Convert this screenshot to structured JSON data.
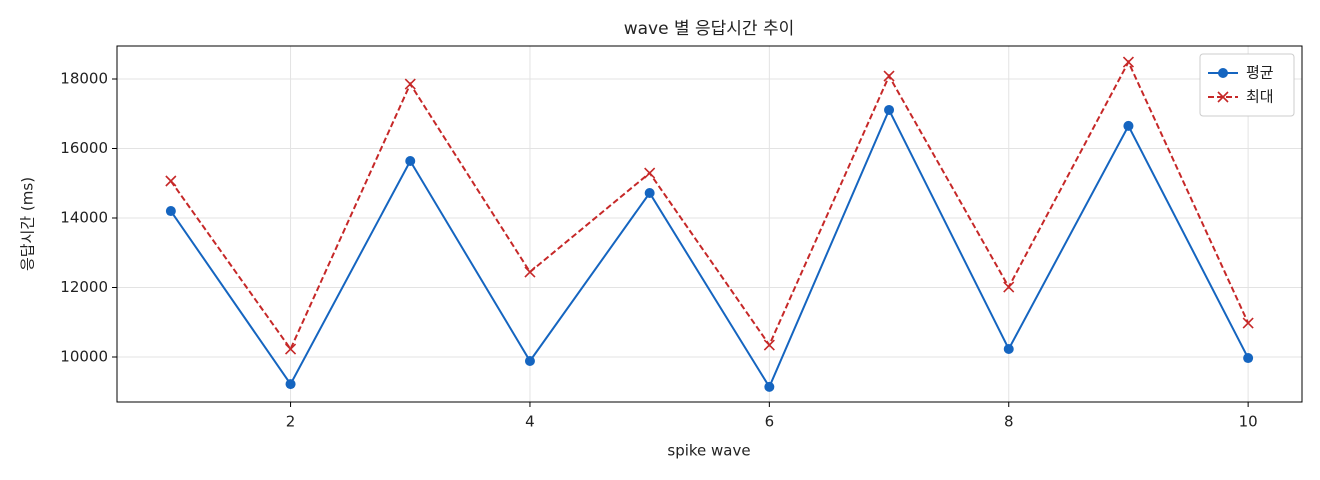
{
  "chart_data": {
    "type": "line",
    "title": "wave 별 응답시간 추이",
    "xlabel": "spike wave",
    "ylabel": "응답시간 (ms)",
    "x": [
      1,
      2,
      3,
      4,
      5,
      6,
      7,
      8,
      9,
      10
    ],
    "series": [
      {
        "name": "평균",
        "color": "#1565c0",
        "marker": "o",
        "linestyle": "solid",
        "values": [
          14200,
          9220,
          15640,
          9885,
          14720,
          9140,
          17110,
          10230,
          16650,
          9970
        ]
      },
      {
        "name": "최대",
        "color": "#c62828",
        "marker": "x",
        "linestyle": "dashed",
        "values": [
          15065,
          10230,
          17856,
          12446,
          15295,
          10345,
          18086,
          12014,
          18489,
          10978
        ]
      }
    ],
    "xlim": [
      0.55,
      10.45
    ],
    "ylim": [
      8705,
      18950
    ],
    "xticks": [
      2,
      4,
      6,
      8,
      10
    ],
    "yticks": [
      10000,
      12000,
      14000,
      16000,
      18000
    ],
    "grid": true,
    "legend": "upper right"
  }
}
